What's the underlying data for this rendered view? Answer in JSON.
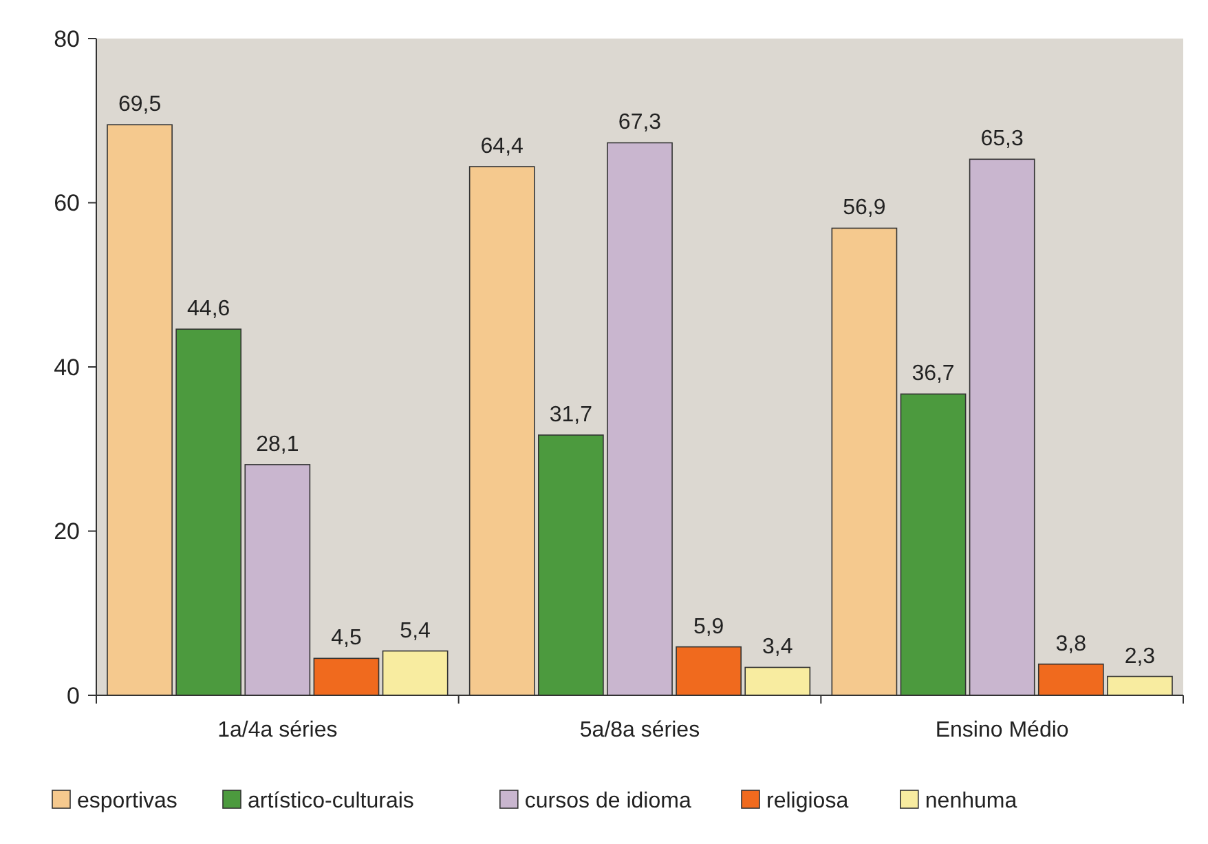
{
  "chart_data": {
    "type": "bar",
    "categories": [
      "1a/4a séries",
      "5a/8a séries",
      "Ensino Médio"
    ],
    "series": [
      {
        "name": "esportivas",
        "color": "#f5c98e",
        "values": [
          69.5,
          64.4,
          56.9
        ],
        "value_labels": [
          "69,5",
          "64,4",
          "56,9"
        ]
      },
      {
        "name": "artístico-culturais",
        "color": "#4c9a3e",
        "values": [
          44.6,
          31.7,
          36.7
        ],
        "value_labels": [
          "44,6",
          "31,7",
          "36,7"
        ]
      },
      {
        "name": "cursos de idioma",
        "color": "#c9b6cf",
        "values": [
          28.1,
          67.3,
          65.3
        ],
        "value_labels": [
          "28,1",
          "67,3",
          "65,3"
        ]
      },
      {
        "name": "religiosa",
        "color": "#f06a1e",
        "values": [
          4.5,
          5.9,
          3.8
        ],
        "value_labels": [
          "4,5",
          "5,9",
          "3,8"
        ]
      },
      {
        "name": "nenhuma",
        "color": "#f8eca0",
        "values": [
          5.4,
          3.4,
          2.3
        ],
        "value_labels": [
          "5,4",
          "3,4",
          "2,3"
        ]
      }
    ],
    "ylim": [
      0,
      80
    ],
    "yticks": [
      0,
      20,
      40,
      60,
      80
    ],
    "grid": false,
    "legend": "bottom"
  }
}
